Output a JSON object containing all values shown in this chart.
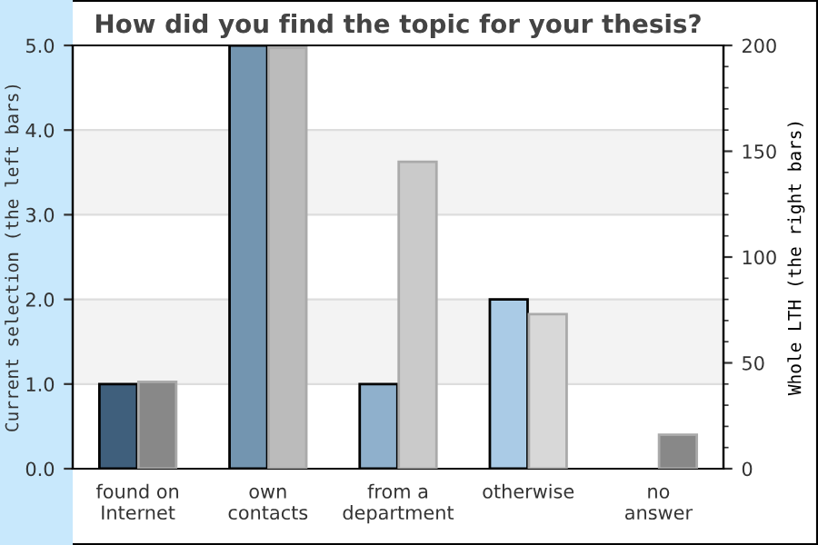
{
  "chart_data": {
    "type": "bar",
    "title": "How did you find the topic for your thesis?",
    "ylabel": "Current selection (the left bars)",
    "y2label": "Whole LTH (the right bars)",
    "categories": [
      "found on\nInternet",
      "own\ncontacts",
      "from a\ndepartment",
      "otherwise",
      "no\nanswer"
    ],
    "series": [
      {
        "colors": [
          "#3f5f7c",
          "#7395b0",
          "#8fb0cc",
          "#aacbe6",
          "#aacbe6"
        ],
        "values": [
          1,
          5,
          1,
          2,
          0
        ]
      },
      {
        "axis": "y2",
        "colors": [
          "#888888",
          "#bbbbbb",
          "#cacaca",
          "#d8d8d8",
          "#888888"
        ],
        "values": [
          41,
          199,
          145,
          73,
          16
        ]
      }
    ],
    "ylim": [
      0,
      5
    ],
    "yticks": [
      {
        "value": 0,
        "label": "0.0"
      },
      {
        "value": 1,
        "label": "1.0"
      },
      {
        "value": 2,
        "label": "2.0"
      },
      {
        "value": 3,
        "label": "3.0"
      },
      {
        "value": 4,
        "label": "4.0"
      },
      {
        "value": 5,
        "label": "5.0"
      }
    ],
    "y2lim": [
      0,
      200
    ],
    "y2ticks": [
      0,
      {
        "value": 10,
        "label": null
      },
      {
        "value": 20,
        "label": null
      },
      {
        "value": 30,
        "label": null
      },
      {
        "value": 40,
        "label": null
      },
      50,
      {
        "value": 60,
        "label": null
      },
      {
        "value": 70,
        "label": null
      },
      {
        "value": 80,
        "label": null
      },
      {
        "value": 90,
        "label": null
      },
      100,
      {
        "value": 110,
        "label": null
      },
      {
        "value": 120,
        "label": null
      },
      {
        "value": 130,
        "label": null
      },
      {
        "value": 140,
        "label": null
      },
      150,
      {
        "value": 160,
        "label": null
      },
      {
        "value": 170,
        "label": null
      },
      {
        "value": 180,
        "label": null
      },
      {
        "value": 190,
        "label": null
      },
      200
    ],
    "bands": [
      {
        "axis": "y",
        "from": 1,
        "to": 2,
        "color": "#f3f3f3"
      },
      {
        "axis": "y",
        "from": 3,
        "to": 4,
        "color": "#f3f3f3"
      }
    ],
    "grid": "y"
  }
}
